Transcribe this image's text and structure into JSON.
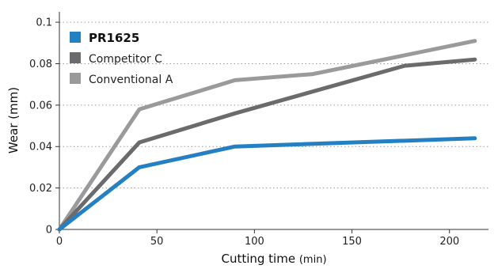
{
  "chart_data": {
    "type": "line",
    "xlabel": "Cutting time",
    "xlabel_unit": "(min)",
    "ylabel": "Wear (mm)",
    "xlim": [
      0,
      220
    ],
    "ylim": [
      0,
      0.105
    ],
    "xticks": [
      0,
      50,
      100,
      150,
      200
    ],
    "xtick_labels": [
      "0",
      "50",
      "100",
      "150",
      "200"
    ],
    "yticks": [
      0,
      0.02,
      0.04,
      0.06,
      0.08,
      0.1
    ],
    "ytick_labels": [
      "0",
      "0.02",
      "0.04",
      "0.06",
      "0.08",
      "0.1"
    ],
    "grid": "horizontal dotted",
    "legend_position": "top-left",
    "series": [
      {
        "name": "PR1625",
        "color": "#2580c3",
        "bold": true,
        "x": [
          0,
          41,
          90,
          213
        ],
        "y": [
          0,
          0.03,
          0.04,
          0.044
        ]
      },
      {
        "name": "Competitor C",
        "color": "#6b6b6e",
        "bold": false,
        "x": [
          0,
          41,
          90,
          177,
          213
        ],
        "y": [
          0,
          0.042,
          0.056,
          0.079,
          0.082
        ]
      },
      {
        "name": "Conventional A",
        "color": "#9a9a9d",
        "bold": false,
        "x": [
          0,
          41,
          90,
          130,
          213
        ],
        "y": [
          0,
          0.058,
          0.072,
          0.075,
          0.091
        ]
      }
    ]
  }
}
